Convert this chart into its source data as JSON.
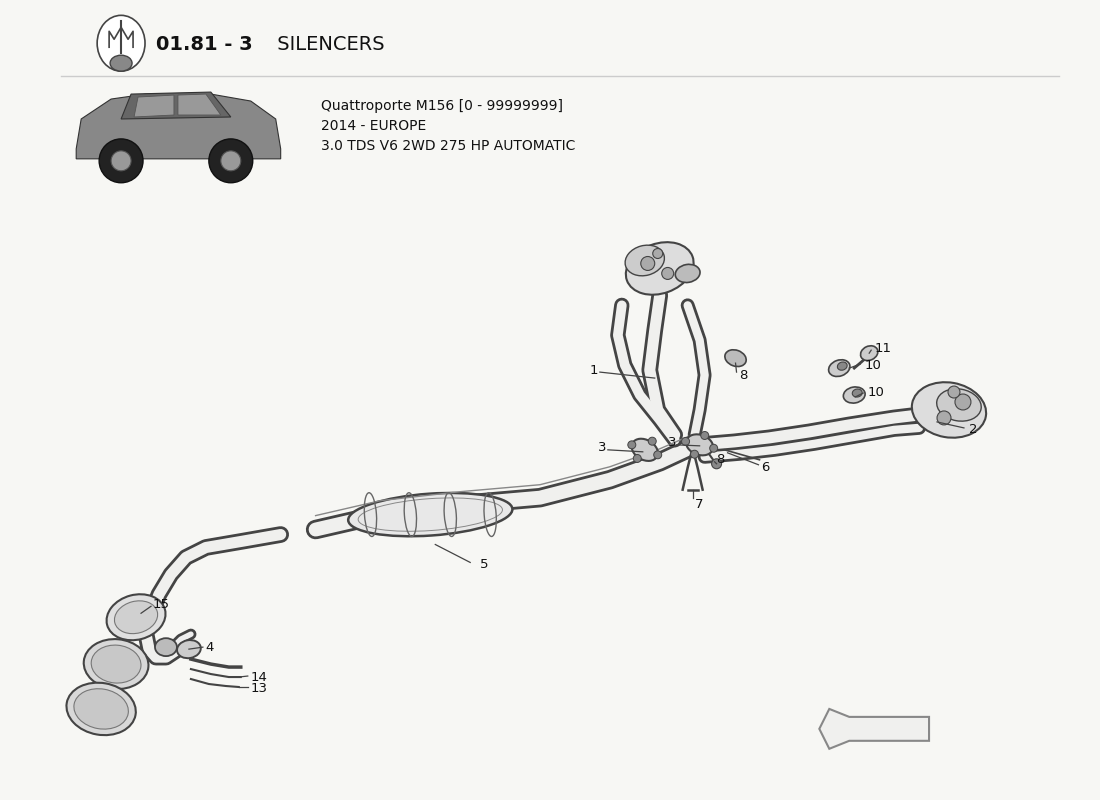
{
  "title_bold": "01.81 - 3",
  "title_normal": " SILENCERS",
  "car_model_line1": "Quattroporte M156 [0 - 99999999]",
  "car_model_line2": "2014 - EUROPE",
  "car_model_line3": "3.0 TDS V6 2WD 275 HP AUTOMATIC",
  "bg_color": "#f7f7f4",
  "line_color": "#444444",
  "fill_color": "#f0f0ee",
  "gray_fill": "#e0e0de"
}
